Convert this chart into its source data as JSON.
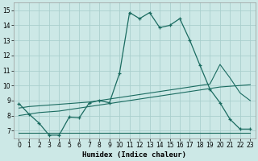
{
  "xlabel": "Humidex (Indice chaleur)",
  "bg_color": "#cce8e6",
  "grid_color": "#aacfcd",
  "line_color": "#1a6b60",
  "xlim": [
    -0.5,
    23.5
  ],
  "ylim": [
    6.5,
    15.5
  ],
  "xticks": [
    0,
    1,
    2,
    3,
    4,
    5,
    6,
    7,
    8,
    9,
    10,
    11,
    12,
    13,
    14,
    15,
    16,
    17,
    18,
    19,
    20,
    21,
    22,
    23
  ],
  "yticks": [
    7,
    8,
    9,
    10,
    11,
    12,
    13,
    14,
    15
  ],
  "line1_x": [
    0,
    1,
    2,
    3,
    4,
    5,
    6,
    7,
    8,
    9,
    10,
    11,
    12,
    13,
    14,
    15,
    16,
    17,
    18,
    19,
    20,
    21,
    22,
    23
  ],
  "line1_y": [
    8.8,
    8.1,
    7.5,
    6.7,
    6.7,
    7.9,
    7.85,
    8.85,
    9.0,
    8.85,
    10.8,
    14.85,
    14.45,
    14.85,
    13.85,
    14.0,
    14.45,
    13.0,
    11.35,
    9.75,
    8.85,
    7.75,
    7.1,
    7.1
  ],
  "line2_x": [
    0,
    1,
    2,
    3,
    4,
    5,
    6,
    7,
    8,
    9,
    10,
    11,
    12,
    13,
    14,
    15,
    16,
    17,
    18,
    19,
    20,
    21,
    22,
    23
  ],
  "line2_y": [
    6.85,
    6.85,
    6.85,
    6.85,
    6.85,
    6.85,
    6.85,
    6.85,
    6.85,
    6.85,
    6.85,
    6.85,
    6.85,
    6.85,
    6.85,
    6.85,
    6.85,
    6.85,
    6.85,
    6.85,
    6.85,
    6.85,
    6.85,
    6.85
  ],
  "line3_x": [
    0,
    1,
    2,
    3,
    4,
    5,
    6,
    7,
    8,
    9,
    10,
    11,
    12,
    13,
    14,
    15,
    16,
    17,
    18,
    19,
    20,
    21,
    22,
    23
  ],
  "line3_y": [
    8.0,
    8.1,
    8.2,
    8.25,
    8.3,
    8.4,
    8.5,
    8.6,
    8.7,
    8.8,
    8.9,
    9.0,
    9.1,
    9.2,
    9.3,
    9.4,
    9.5,
    9.6,
    9.7,
    9.8,
    9.9,
    9.95,
    10.0,
    10.05
  ],
  "line4_x": [
    0,
    1,
    2,
    3,
    4,
    5,
    6,
    7,
    8,
    9,
    10,
    11,
    12,
    13,
    14,
    15,
    16,
    17,
    18,
    19,
    20,
    21,
    22,
    23
  ],
  "line4_y": [
    8.5,
    8.6,
    8.65,
    8.7,
    8.75,
    8.8,
    8.85,
    8.9,
    9.0,
    9.1,
    9.2,
    9.3,
    9.4,
    9.5,
    9.6,
    9.7,
    9.8,
    9.9,
    10.0,
    10.1,
    11.4,
    10.5,
    9.5,
    9.0
  ]
}
